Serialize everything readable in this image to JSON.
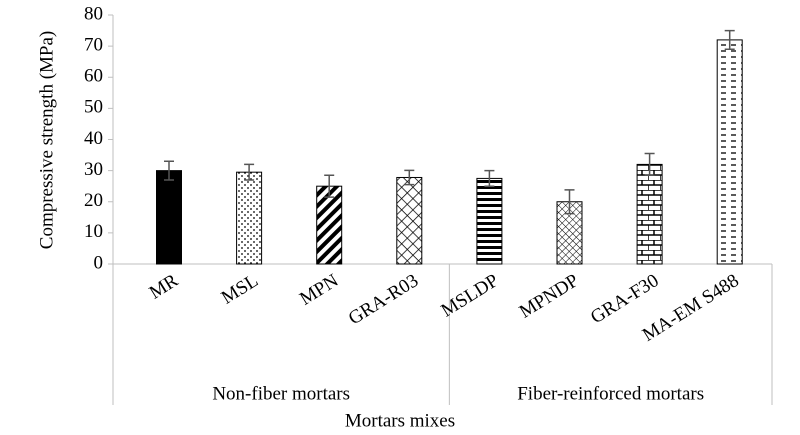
{
  "chart_data": {
    "type": "bar",
    "ylabel": "Compressive strength (MPa)",
    "xlabel": "Mortars mixes",
    "groups": [
      {
        "name": "Non-fiber mortars",
        "categories": [
          "MR",
          "MSL",
          "MPN",
          "GRA-R03"
        ],
        "values": [
          30,
          29.5,
          25,
          27.8
        ],
        "errors": [
          3,
          2.5,
          3.5,
          2.3
        ]
      },
      {
        "name": "Fiber-reinforced mortars",
        "categories": [
          "MSLDP",
          "MPNDP",
          "GRA-F30",
          "MA-EM S488"
        ],
        "values": [
          27.5,
          20,
          32,
          72
        ],
        "errors": [
          2.5,
          3.8,
          3.5,
          3
        ]
      }
    ],
    "color": "#000000",
    "ylim": [
      0,
      80
    ],
    "yticks": [
      0,
      10,
      20,
      30,
      40,
      50,
      60,
      70,
      80
    ],
    "grid": false
  }
}
